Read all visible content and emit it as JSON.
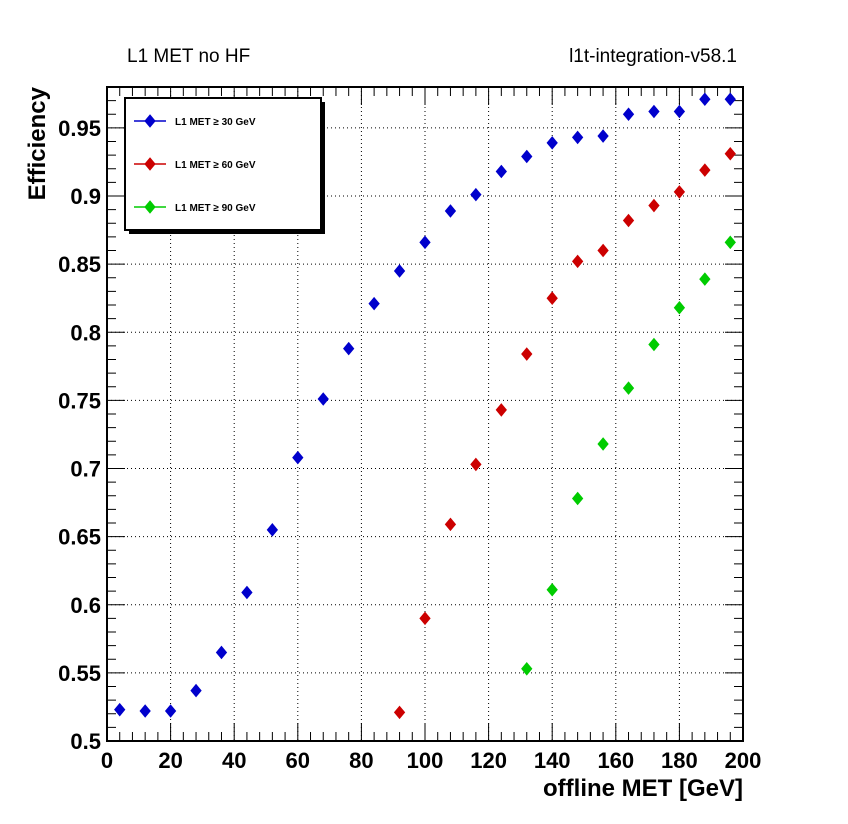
{
  "header": {
    "left_title": "L1 MET no HF",
    "right_title": "l1t-integration-v58.1"
  },
  "chart_data": {
    "type": "scatter",
    "xlabel": "offline MET [GeV]",
    "ylabel": "Efficiency",
    "xlim": [
      0,
      200
    ],
    "ylim": [
      0.5,
      0.98
    ],
    "x_ticks": [
      "0",
      "20",
      "40",
      "60",
      "80",
      "100",
      "120",
      "140",
      "160",
      "180",
      "200"
    ],
    "y_ticks": [
      "0.5",
      "0.55",
      "0.6",
      "0.65",
      "0.7",
      "0.75",
      "0.8",
      "0.85",
      "0.9",
      "0.95"
    ],
    "grid": true,
    "legend_position": "top-left",
    "series": [
      {
        "name": "L1 MET ≥ 30 GeV",
        "color": "#0000cc",
        "x": [
          4,
          12,
          20,
          28,
          36,
          44,
          52,
          60,
          68,
          76,
          84,
          92,
          100,
          108,
          116,
          124,
          132,
          140,
          148,
          156,
          164,
          172,
          180,
          188,
          196
        ],
        "y": [
          0.523,
          0.522,
          0.522,
          0.537,
          0.565,
          0.609,
          0.655,
          0.708,
          0.751,
          0.788,
          0.821,
          0.845,
          0.866,
          0.889,
          0.901,
          0.918,
          0.929,
          0.939,
          0.943,
          0.944,
          0.96,
          0.962,
          0.962,
          0.971,
          0.971
        ]
      },
      {
        "name": "L1 MET ≥ 60 GeV",
        "color": "#cc0000",
        "x": [
          92,
          100,
          108,
          116,
          124,
          132,
          140,
          148,
          156,
          164,
          172,
          180,
          188,
          196
        ],
        "y": [
          0.521,
          0.59,
          0.659,
          0.703,
          0.743,
          0.784,
          0.825,
          0.852,
          0.86,
          0.882,
          0.893,
          0.903,
          0.919,
          0.931
        ]
      },
      {
        "name": "L1 MET ≥ 90 GeV",
        "color": "#00cc00",
        "x": [
          132,
          140,
          148,
          156,
          164,
          172,
          180,
          188,
          196
        ],
        "y": [
          0.553,
          0.611,
          0.678,
          0.718,
          0.759,
          0.791,
          0.818,
          0.839,
          0.866
        ]
      }
    ]
  }
}
